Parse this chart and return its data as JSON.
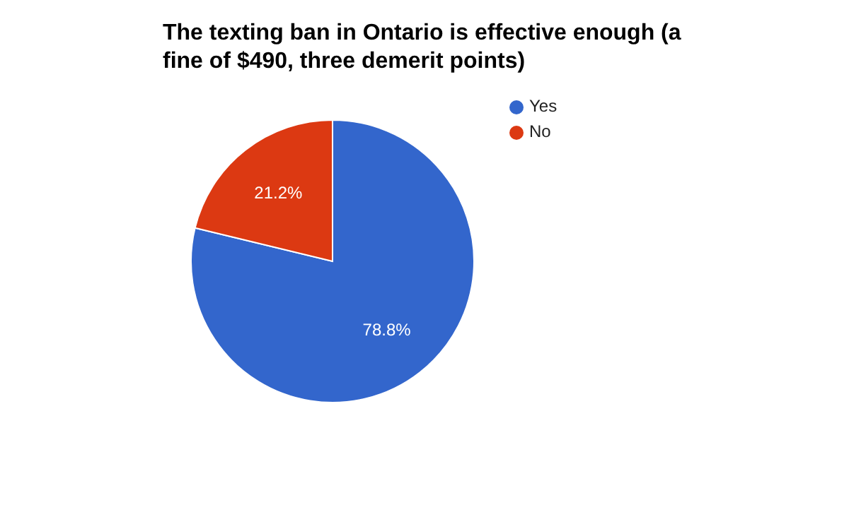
{
  "chart_data": {
    "type": "pie",
    "title": "The texting ban in Ontario is effective enough (a fine of $490, three demerit points)",
    "categories": [
      "Yes",
      "No"
    ],
    "values": [
      78.8,
      21.2
    ],
    "colors": [
      "#3366cc",
      "#dc3912"
    ],
    "value_labels": [
      "78.8%",
      "21.2%"
    ],
    "legend": "top right"
  }
}
